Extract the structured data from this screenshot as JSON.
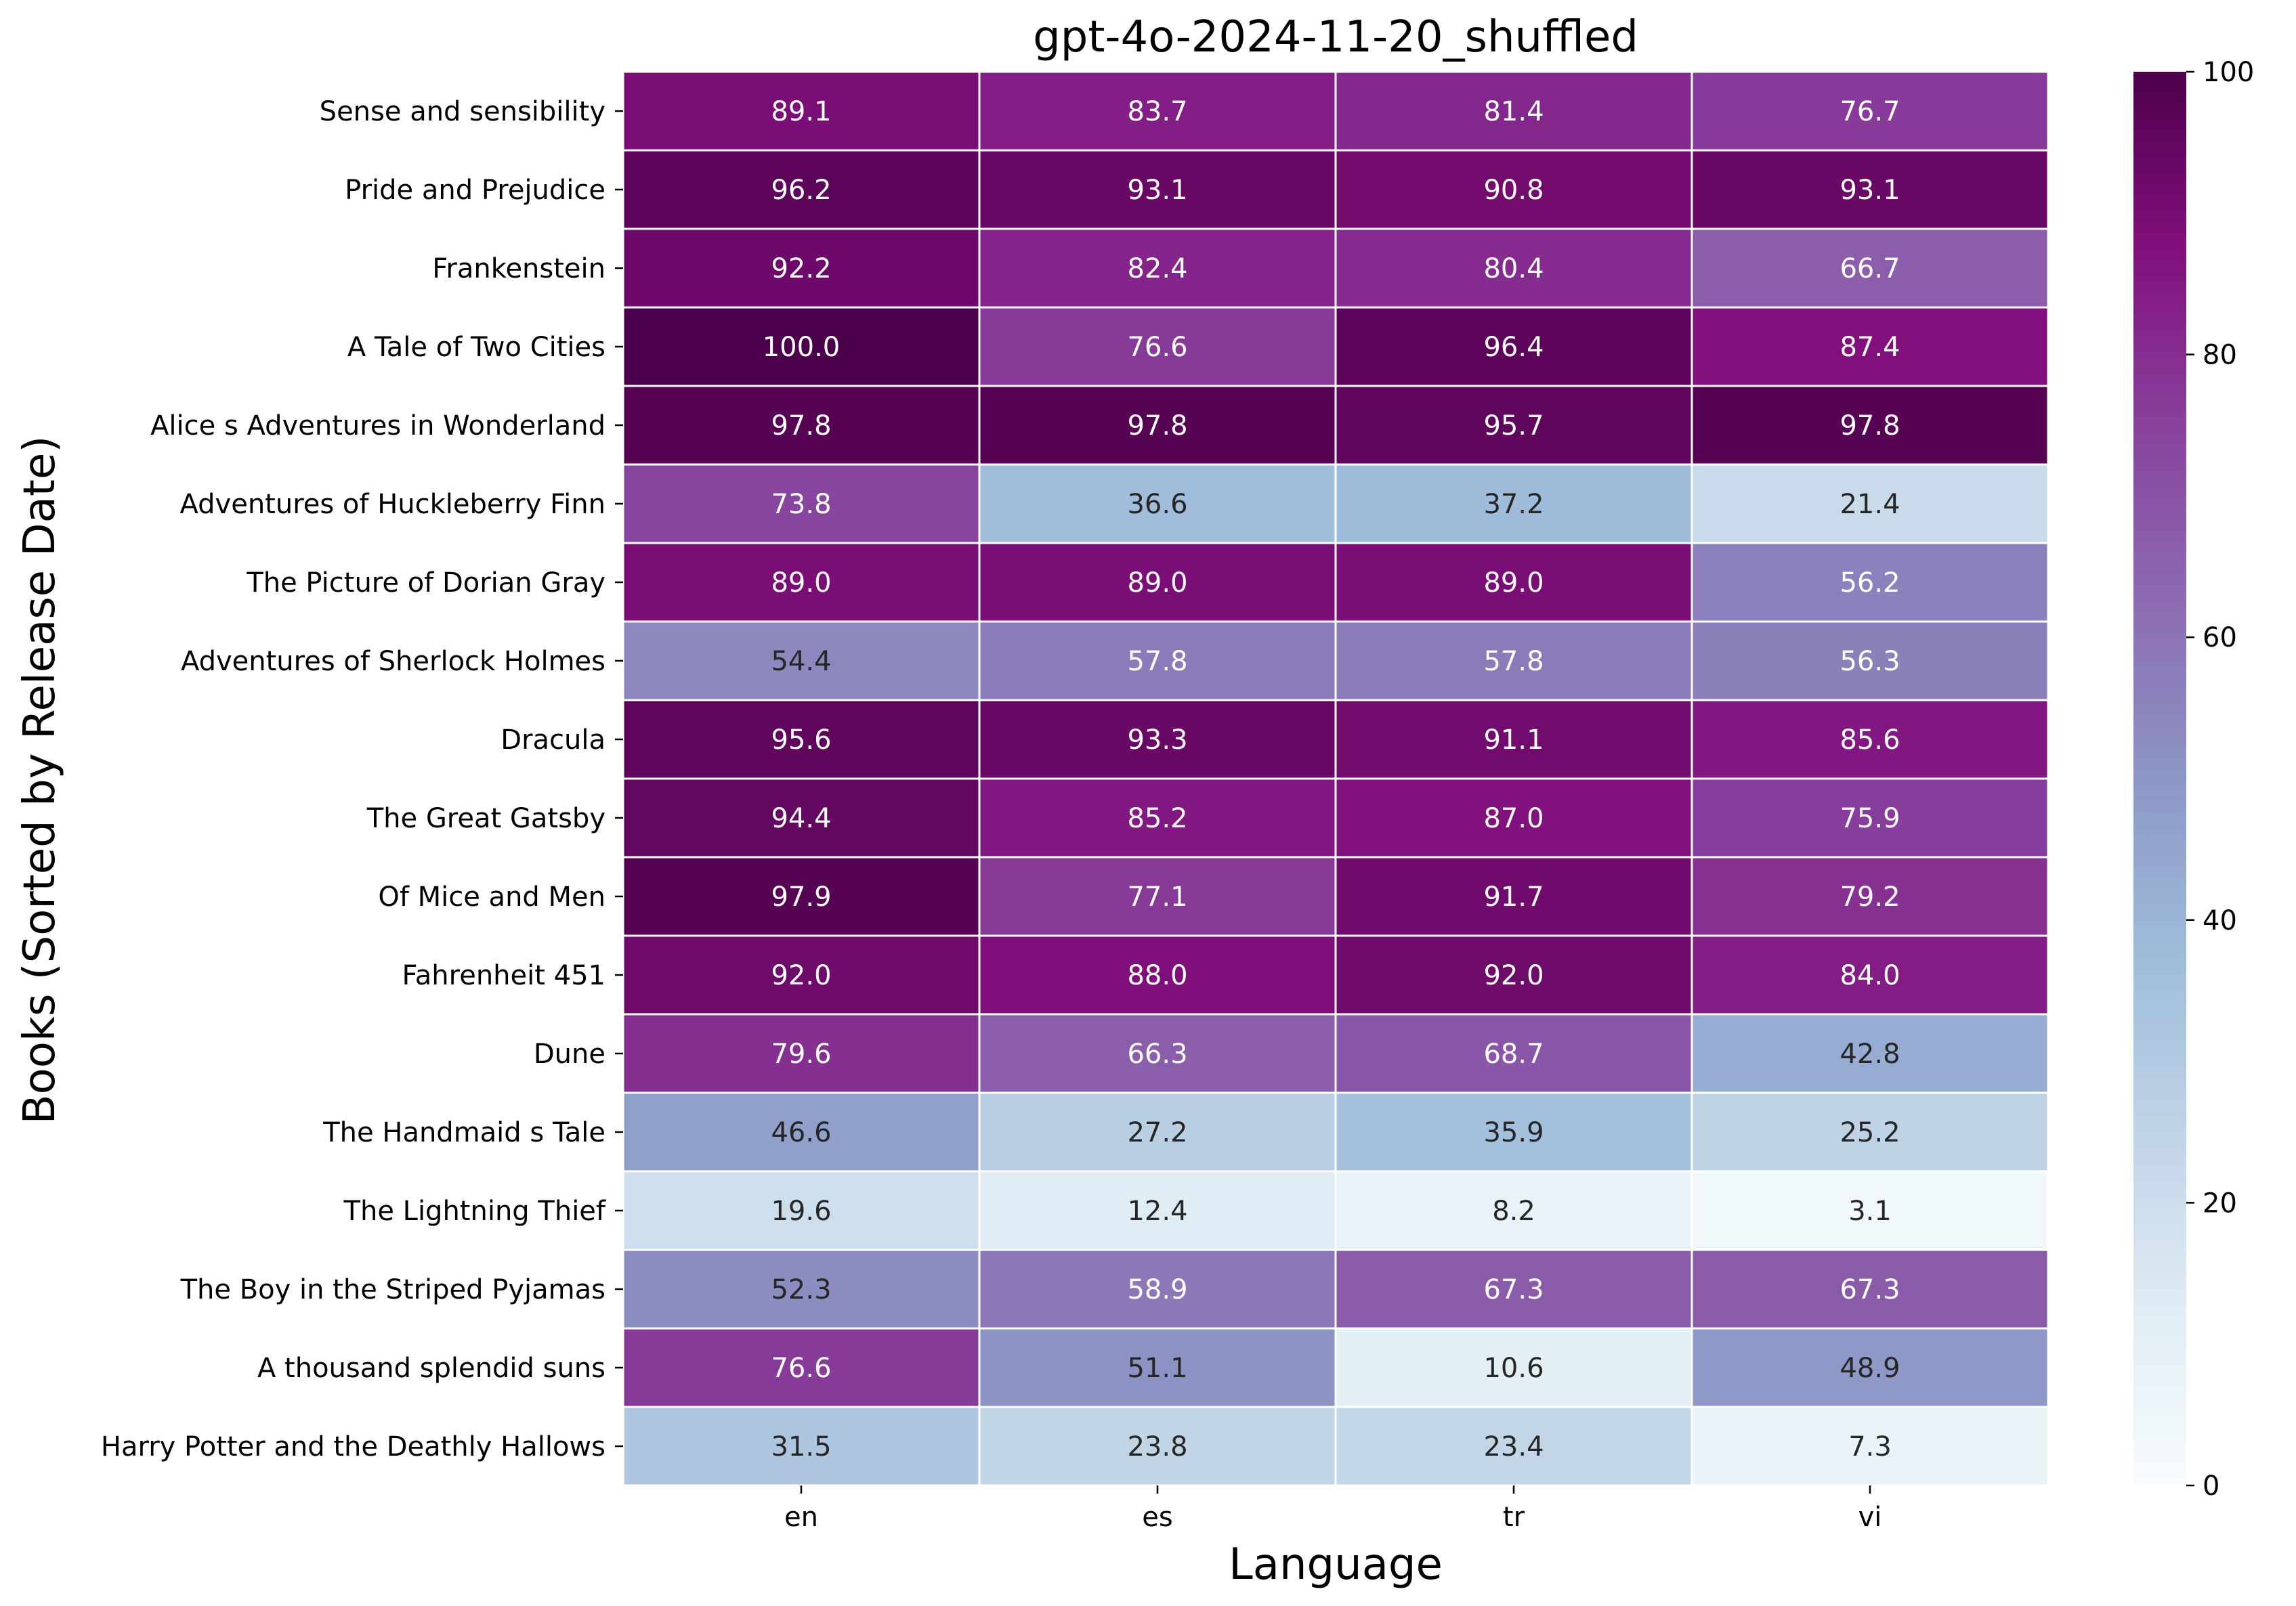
{
  "chart_data": {
    "type": "heatmap",
    "title": "gpt-4o-2024-11-20_shuffled",
    "xlabel": "Language",
    "ylabel": "Books (Sorted by Release Date)",
    "columns": [
      "en",
      "es",
      "tr",
      "vi"
    ],
    "rows": [
      "Sense and sensibility",
      "Pride and Prejudice",
      "Frankenstein",
      "A Tale of Two Cities",
      "Alice s Adventures in Wonderland",
      "Adventures of Huckleberry Finn",
      "The Picture of Dorian Gray",
      "Adventures of Sherlock Holmes",
      "Dracula",
      "The Great Gatsby",
      "Of Mice and Men",
      "Fahrenheit 451",
      "Dune",
      "The Handmaid s Tale",
      "The Lightning Thief",
      "The Boy in the Striped Pyjamas",
      "A thousand splendid suns",
      "Harry Potter and the Deathly Hallows"
    ],
    "values": [
      [
        89.1,
        83.7,
        81.4,
        76.7
      ],
      [
        96.2,
        93.1,
        90.8,
        93.1
      ],
      [
        92.2,
        82.4,
        80.4,
        66.7
      ],
      [
        100.0,
        76.6,
        96.4,
        87.4
      ],
      [
        97.8,
        97.8,
        95.7,
        97.8
      ],
      [
        73.8,
        36.6,
        37.2,
        21.4
      ],
      [
        89.0,
        89.0,
        89.0,
        56.2
      ],
      [
        54.4,
        57.8,
        57.8,
        56.3
      ],
      [
        95.6,
        93.3,
        91.1,
        85.6
      ],
      [
        94.4,
        85.2,
        87.0,
        75.9
      ],
      [
        97.9,
        77.1,
        91.7,
        79.2
      ],
      [
        92.0,
        88.0,
        92.0,
        84.0
      ],
      [
        79.6,
        66.3,
        68.7,
        42.8
      ],
      [
        46.6,
        27.2,
        35.9,
        25.2
      ],
      [
        19.6,
        12.4,
        8.2,
        3.1
      ],
      [
        52.3,
        58.9,
        67.3,
        67.3
      ],
      [
        76.6,
        51.1,
        10.6,
        48.9
      ],
      [
        31.5,
        23.8,
        23.4,
        7.3
      ]
    ],
    "colorbar": {
      "range": [
        0,
        100
      ],
      "ticks": [
        0,
        20,
        40,
        60,
        80,
        100
      ]
    },
    "colormap": "BuPu",
    "colormap_stops": [
      "#f7fcfd",
      "#e0ecf4",
      "#bfd3e6",
      "#9ebcda",
      "#8c96c6",
      "#8c6bb1",
      "#88419d",
      "#810f7c",
      "#4d004b"
    ]
  }
}
